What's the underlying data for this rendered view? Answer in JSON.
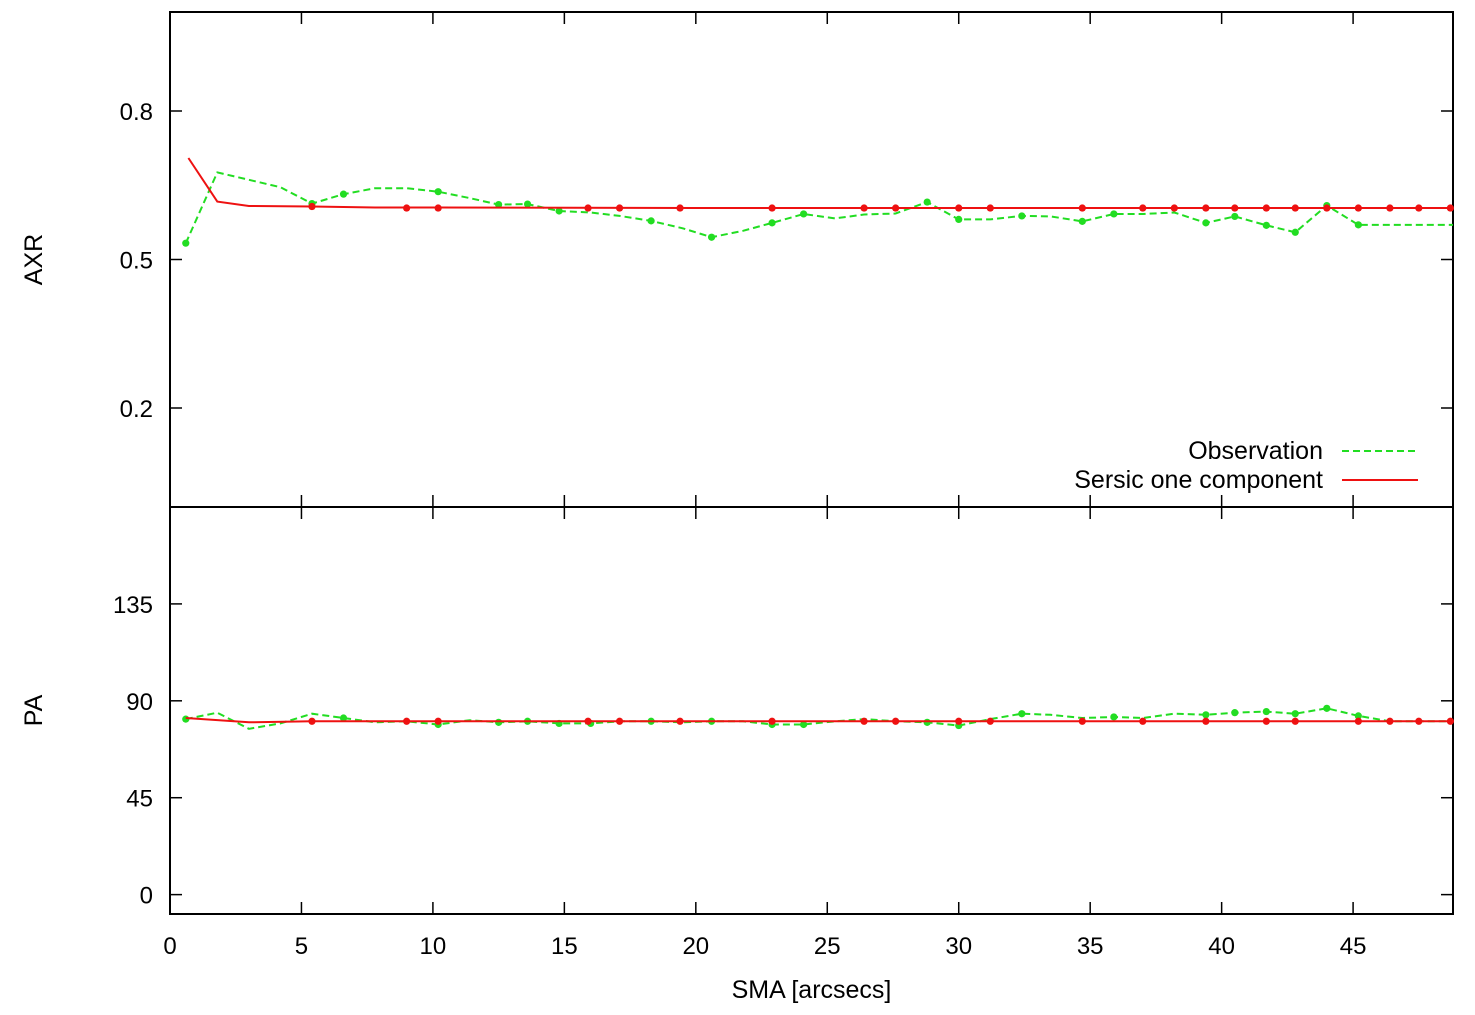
{
  "chart_data": [
    {
      "type": "line",
      "ylabel": "AXR",
      "ylim": [
        0.0,
        1.0
      ],
      "yticks": [
        0.2,
        0.5,
        0.8
      ],
      "xlim": [
        0,
        48.8
      ],
      "series": [
        {
          "name": "Observation",
          "color": "#22dd22",
          "dash": "dashed",
          "points": [
            [
              0.6,
              0.533
            ],
            [
              1.8,
              0.676
            ],
            [
              3.0,
              0.661
            ],
            [
              4.2,
              0.646
            ],
            [
              5.4,
              0.613
            ],
            [
              6.6,
              0.632
            ],
            [
              7.8,
              0.644
            ],
            [
              9.0,
              0.644
            ],
            [
              10.2,
              0.637
            ],
            [
              11.4,
              0.624
            ],
            [
              12.5,
              0.611
            ],
            [
              13.6,
              0.612
            ],
            [
              14.8,
              0.598
            ],
            [
              16.0,
              0.595
            ],
            [
              17.1,
              0.588
            ],
            [
              18.3,
              0.578
            ],
            [
              19.5,
              0.563
            ],
            [
              20.6,
              0.545
            ],
            [
              21.8,
              0.558
            ],
            [
              22.9,
              0.574
            ],
            [
              24.1,
              0.592
            ],
            [
              25.3,
              0.583
            ],
            [
              26.4,
              0.591
            ],
            [
              27.6,
              0.593
            ],
            [
              28.8,
              0.616
            ],
            [
              30.0,
              0.581
            ],
            [
              31.2,
              0.581
            ],
            [
              32.4,
              0.588
            ],
            [
              33.5,
              0.587
            ],
            [
              34.7,
              0.577
            ],
            [
              35.9,
              0.592
            ],
            [
              37.0,
              0.592
            ],
            [
              38.2,
              0.595
            ],
            [
              39.4,
              0.574
            ],
            [
              40.5,
              0.587
            ],
            [
              41.7,
              0.569
            ],
            [
              42.8,
              0.555
            ],
            [
              44.0,
              0.609
            ],
            [
              45.2,
              0.57
            ],
            [
              46.4,
              0.57
            ],
            [
              47.5,
              0.57
            ],
            [
              48.8,
              0.57
            ]
          ],
          "markers": [
            [
              0.6,
              0.533
            ],
            [
              5.4,
              0.613
            ],
            [
              6.6,
              0.632
            ],
            [
              10.2,
              0.637
            ],
            [
              12.5,
              0.611
            ],
            [
              13.6,
              0.612
            ],
            [
              14.8,
              0.598
            ],
            [
              18.3,
              0.578
            ],
            [
              20.6,
              0.545
            ],
            [
              22.9,
              0.574
            ],
            [
              24.1,
              0.592
            ],
            [
              28.8,
              0.616
            ],
            [
              30.0,
              0.581
            ],
            [
              32.4,
              0.588
            ],
            [
              34.7,
              0.577
            ],
            [
              35.9,
              0.592
            ],
            [
              39.4,
              0.574
            ],
            [
              40.5,
              0.587
            ],
            [
              41.7,
              0.569
            ],
            [
              42.8,
              0.555
            ],
            [
              44.0,
              0.609
            ],
            [
              45.2,
              0.57
            ]
          ]
        },
        {
          "name": "Sersic one component",
          "color": "#ee1111",
          "dash": "solid",
          "points": [
            [
              0.7,
              0.705
            ],
            [
              1.8,
              0.617
            ],
            [
              3.0,
              0.608
            ],
            [
              5.4,
              0.607
            ],
            [
              7.8,
              0.605
            ],
            [
              10.2,
              0.605
            ],
            [
              20.0,
              0.604
            ],
            [
              48.8,
              0.604
            ]
          ],
          "markers": [
            [
              5.4,
              0.607
            ],
            [
              9.0,
              0.604
            ],
            [
              10.2,
              0.604
            ],
            [
              15.9,
              0.604
            ],
            [
              17.1,
              0.604
            ],
            [
              19.4,
              0.604
            ],
            [
              22.9,
              0.604
            ],
            [
              26.4,
              0.604
            ],
            [
              27.6,
              0.604
            ],
            [
              30.0,
              0.604
            ],
            [
              31.2,
              0.604
            ],
            [
              34.7,
              0.604
            ],
            [
              37.0,
              0.604
            ],
            [
              38.2,
              0.604
            ],
            [
              39.4,
              0.604
            ],
            [
              40.5,
              0.604
            ],
            [
              41.7,
              0.604
            ],
            [
              42.8,
              0.604
            ],
            [
              44.0,
              0.604
            ],
            [
              45.2,
              0.604
            ],
            [
              46.4,
              0.604
            ],
            [
              47.5,
              0.604
            ],
            [
              48.7,
              0.604
            ]
          ]
        }
      ]
    },
    {
      "type": "line",
      "ylabel": "PA",
      "xlabel": "SMA [arcsecs]",
      "ylim": [
        -9,
        180
      ],
      "yticks": [
        0,
        45,
        90,
        135
      ],
      "xlim": [
        0,
        48.8
      ],
      "xticks": [
        0,
        5,
        10,
        15,
        20,
        25,
        30,
        35,
        40,
        45
      ],
      "series": [
        {
          "name": "Observation",
          "color": "#22dd22",
          "dash": "dashed",
          "points": [
            [
              0.6,
              81.5
            ],
            [
              1.8,
              84.5
            ],
            [
              3.0,
              77.0
            ],
            [
              4.2,
              79.5
            ],
            [
              5.4,
              84.0
            ],
            [
              6.6,
              82.0
            ],
            [
              7.8,
              80.0
            ],
            [
              9.0,
              80.5
            ],
            [
              10.2,
              79.0
            ],
            [
              11.4,
              81.0
            ],
            [
              12.5,
              80.0
            ],
            [
              13.6,
              80.5
            ],
            [
              14.8,
              79.5
            ],
            [
              16.0,
              79.5
            ],
            [
              17.1,
              80.5
            ],
            [
              18.3,
              80.5
            ],
            [
              19.5,
              80.0
            ],
            [
              20.6,
              80.5
            ],
            [
              21.8,
              80.5
            ],
            [
              22.9,
              79.0
            ],
            [
              24.1,
              79.0
            ],
            [
              25.3,
              80.5
            ],
            [
              26.4,
              81.5
            ],
            [
              27.6,
              80.5
            ],
            [
              28.8,
              80.0
            ],
            [
              30.0,
              78.5
            ],
            [
              31.2,
              81.5
            ],
            [
              32.4,
              84.0
            ],
            [
              33.5,
              83.5
            ],
            [
              34.7,
              82.0
            ],
            [
              35.9,
              82.5
            ],
            [
              37.0,
              82.0
            ],
            [
              38.2,
              84.0
            ],
            [
              39.4,
              83.5
            ],
            [
              40.5,
              84.5
            ],
            [
              41.7,
              85.0
            ],
            [
              42.8,
              84.0
            ],
            [
              44.0,
              86.5
            ],
            [
              45.2,
              83.0
            ],
            [
              46.4,
              80.5
            ],
            [
              47.5,
              80.5
            ],
            [
              48.8,
              80.5
            ]
          ],
          "markers": [
            [
              0.6,
              81.5
            ],
            [
              6.6,
              82.0
            ],
            [
              10.2,
              79.0
            ],
            [
              12.5,
              80.0
            ],
            [
              13.6,
              80.5
            ],
            [
              14.8,
              79.5
            ],
            [
              16.0,
              79.5
            ],
            [
              18.3,
              80.5
            ],
            [
              20.6,
              80.5
            ],
            [
              22.9,
              79.0
            ],
            [
              24.1,
              79.0
            ],
            [
              28.8,
              80.0
            ],
            [
              30.0,
              78.5
            ],
            [
              32.4,
              84.0
            ],
            [
              35.9,
              82.5
            ],
            [
              39.4,
              83.5
            ],
            [
              40.5,
              84.5
            ],
            [
              41.7,
              85.0
            ],
            [
              42.8,
              84.0
            ],
            [
              44.0,
              86.5
            ],
            [
              45.2,
              83.0
            ]
          ]
        },
        {
          "name": "Sersic one component",
          "color": "#ee1111",
          "dash": "solid",
          "points": [
            [
              0.6,
              82.0
            ],
            [
              3.0,
              80.0
            ],
            [
              5.4,
              80.5
            ],
            [
              48.8,
              80.5
            ]
          ],
          "markers": [
            [
              5.4,
              80.5
            ],
            [
              9.0,
              80.5
            ],
            [
              10.2,
              80.5
            ],
            [
              15.9,
              80.5
            ],
            [
              17.1,
              80.5
            ],
            [
              19.4,
              80.5
            ],
            [
              22.9,
              80.5
            ],
            [
              26.4,
              80.5
            ],
            [
              27.6,
              80.5
            ],
            [
              30.0,
              80.5
            ],
            [
              31.2,
              80.5
            ],
            [
              34.7,
              80.5
            ],
            [
              37.0,
              80.5
            ],
            [
              39.4,
              80.5
            ],
            [
              41.7,
              80.5
            ],
            [
              42.8,
              80.5
            ],
            [
              45.2,
              80.5
            ],
            [
              46.4,
              80.5
            ],
            [
              47.5,
              80.5
            ],
            [
              48.7,
              80.5
            ]
          ]
        }
      ]
    }
  ],
  "legend": {
    "position": "bottom-right of top panel",
    "entries": [
      {
        "label": "Observation",
        "color": "#22dd22",
        "dash": "dashed"
      },
      {
        "label": "Sersic one component",
        "color": "#ee1111",
        "dash": "solid"
      }
    ]
  }
}
